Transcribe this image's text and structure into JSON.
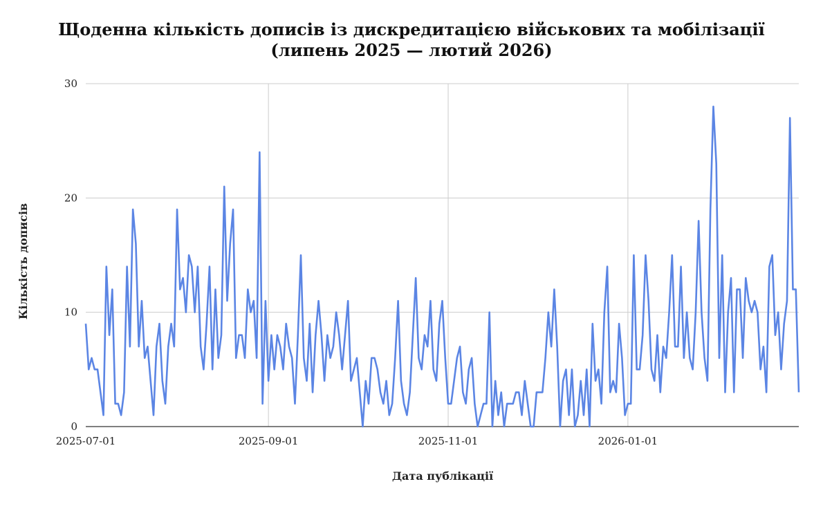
{
  "chart_data": {
    "type": "line",
    "title": "Щоденна кількість дописів із дискредитацією військових та мобілізації",
    "subtitle": "(липень 2025 — лютий 2026)",
    "xlabel": "Дата публікації",
    "ylabel": "Кількість дописів",
    "ylim": [
      0,
      30
    ],
    "yticks": [
      "0",
      "10",
      "20",
      "30"
    ],
    "xticks": [
      "2025-07-01",
      "2025-09-01",
      "2025-11-01",
      "2026-01-01"
    ],
    "xticks_day_index": [
      0,
      62,
      123,
      184
    ],
    "x_start": "2025-07-01",
    "grid": true,
    "line_color": "#5b85e4",
    "series": [
      {
        "values": [
          9,
          5,
          6,
          5,
          5,
          3,
          1,
          14,
          8,
          12,
          2,
          2,
          1,
          3,
          14,
          7,
          19,
          16,
          7,
          11,
          6,
          7,
          4,
          1,
          7,
          9,
          4,
          2,
          7,
          9,
          7,
          19,
          12,
          13,
          10,
          15,
          14,
          10,
          14,
          7,
          5,
          9,
          14,
          5,
          12,
          6,
          8,
          21,
          11,
          16,
          19,
          6,
          8,
          8,
          6,
          12,
          10,
          11,
          6,
          24,
          2,
          11,
          4,
          8,
          5,
          8,
          7,
          5,
          9,
          7,
          6,
          2,
          8,
          15,
          6,
          4,
          9,
          3,
          8,
          11,
          8,
          4,
          8,
          6,
          7,
          10,
          8,
          5,
          8,
          11,
          4,
          5,
          6,
          3,
          0,
          4,
          2,
          6,
          6,
          5,
          3,
          2,
          4,
          1,
          2,
          6,
          11,
          4,
          2,
          1,
          3,
          8,
          13,
          6,
          5,
          8,
          7,
          11,
          5,
          4,
          9,
          11,
          6,
          2,
          2,
          4,
          6,
          7,
          3,
          2,
          5,
          6,
          2,
          0,
          1,
          2,
          2,
          10,
          0,
          4,
          1,
          3,
          0,
          2,
          2,
          2,
          3,
          3,
          1,
          4,
          2,
          0,
          0,
          3,
          3,
          3,
          6,
          10,
          7,
          12,
          7,
          0,
          4,
          5,
          1,
          5,
          0,
          1,
          4,
          1,
          5,
          0,
          9,
          4,
          5,
          2,
          10,
          14,
          3,
          4,
          3,
          9,
          6,
          1,
          2,
          2,
          15,
          5,
          5,
          8,
          15,
          11,
          5,
          4,
          8,
          3,
          7,
          6,
          10,
          15,
          7,
          7,
          14,
          6,
          10,
          6,
          5,
          10,
          18,
          10,
          6,
          4,
          19,
          28,
          23,
          6,
          15,
          3,
          10,
          13,
          3,
          12,
          12,
          6,
          13,
          11,
          10,
          11,
          10,
          5,
          7,
          3,
          14,
          15,
          8,
          10,
          5,
          9,
          11,
          27,
          12,
          12,
          3
        ]
      }
    ]
  }
}
